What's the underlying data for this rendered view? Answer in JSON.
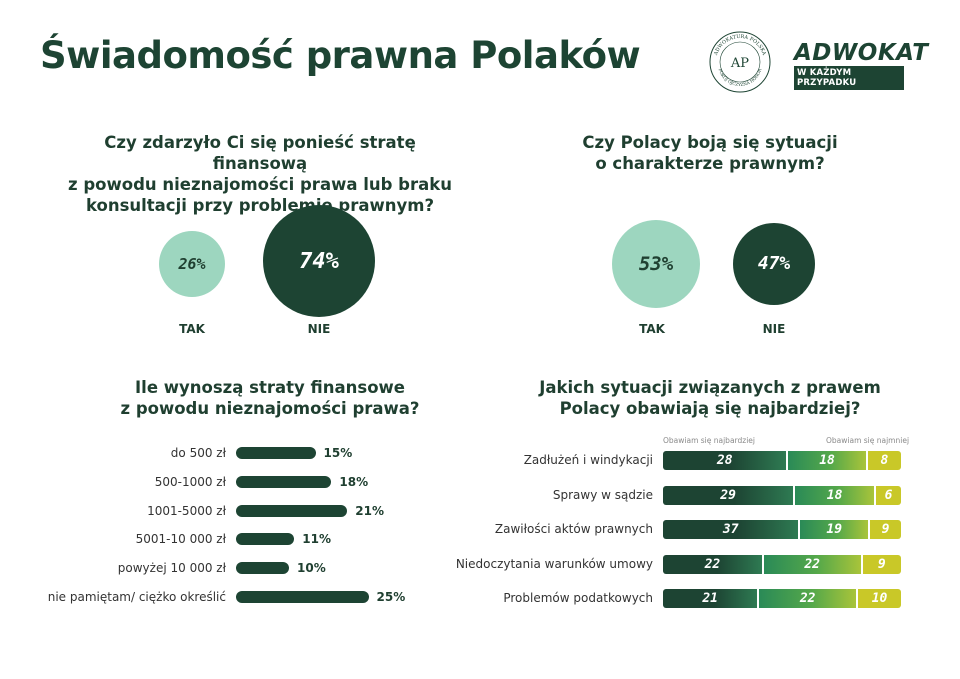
{
  "title": "Świadomość prawna Polaków",
  "logos": {
    "seal_top": "ADWOKATURA POLSKA",
    "seal_bottom": "POKÓJ OJCZYZNA HONOR",
    "seal_center": "AP",
    "brand_main": "ADWOKAT",
    "brand_sub": "W KAŻDYM PRZYPADKU"
  },
  "colors": {
    "dark": "#1d4433",
    "light": "#9dd6bf",
    "mid": "#2e8a57",
    "yellow": "#c9c828"
  },
  "chart_data": [
    {
      "type": "pie",
      "title": "Czy zdarzyło Ci się ponieść stratę finansową z powodu nieznajomości prawa lub braku konsultacji przy problemie prawnym?",
      "title_lines": [
        "Czy zdarzyło Ci się ponieść stratę finansową",
        "z powodu nieznajomości prawa lub braku",
        "konsultacji przy problemie prawnym?"
      ],
      "categories": [
        "TAK",
        "NIE"
      ],
      "values": [
        26,
        74
      ],
      "value_labels": [
        "26%",
        "74%"
      ]
    },
    {
      "type": "pie",
      "title": "Czy Polacy boją się sytuacji o charakterze prawnym?",
      "title_lines": [
        "Czy Polacy boją się sytuacji",
        "o charakterze prawnym?"
      ],
      "categories": [
        "TAK",
        "NIE"
      ],
      "values": [
        53,
        47
      ],
      "value_labels": [
        "53%",
        "47%"
      ]
    },
    {
      "type": "bar",
      "orientation": "horizontal",
      "title": "Ile wynoszą straty finansowe z powodu nieznajomości prawa?",
      "title_lines": [
        "Ile wynoszą straty finansowe",
        "z powodu nieznajomości prawa?"
      ],
      "categories": [
        "do 500 zł",
        "500-1000 zł",
        "1001-5000 zł",
        "5001-10 000 zł",
        "powyżej 10 000 zł",
        "nie pamiętam/ ciężko określić"
      ],
      "values": [
        15,
        18,
        21,
        11,
        10,
        25
      ],
      "value_labels": [
        "15%",
        "18%",
        "21%",
        "11%",
        "10%",
        "25%"
      ]
    },
    {
      "type": "bar",
      "orientation": "horizontal",
      "stacked": true,
      "title": "Jakich sytuacji związanych z prawem Polacy obawiają się najbardziej?",
      "title_lines": [
        "Jakich sytuacji związanych z prawem",
        "Polacy obawiają się najbardziej?"
      ],
      "scale_left": "Obawiam się najbardziej",
      "scale_right": "Obawiam się najmniej",
      "categories": [
        "Zadłużeń i windykacji",
        "Sprawy w sądzie",
        "Zawiłości aktów prawnych",
        "Niedoczytania warunków umowy",
        "Problemów podatkowych"
      ],
      "series": [
        {
          "values": [
            28,
            29,
            37,
            22,
            21
          ]
        },
        {
          "values": [
            18,
            18,
            19,
            22,
            22
          ]
        },
        {
          "values": [
            8,
            6,
            9,
            9,
            10
          ]
        }
      ]
    }
  ]
}
